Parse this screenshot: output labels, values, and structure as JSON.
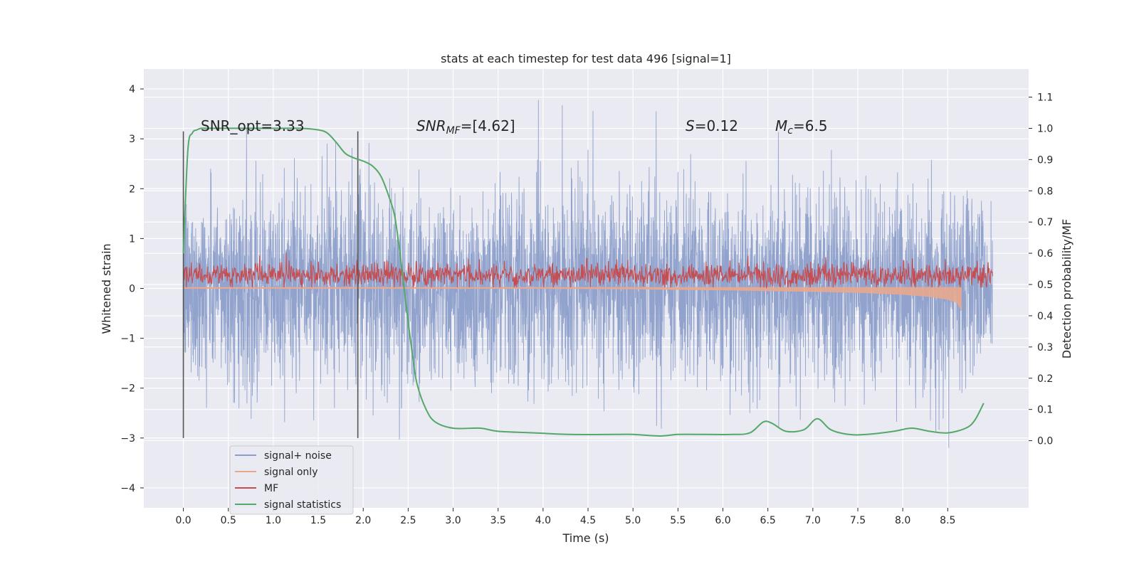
{
  "chart_data": {
    "type": "line",
    "title": "stats at each timestep for test data 496 [signal=1]",
    "xlabel": "Time (s)",
    "ylabel": "Whitened strain",
    "y2label": "Detection probability/MF",
    "xlim": [
      -0.44,
      9.4
    ],
    "ylim": [
      -4.4,
      4.4
    ],
    "y2lim": [
      -0.215,
      1.19
    ],
    "x_ticks": [
      "0.0",
      "0.5",
      "1.0",
      "1.5",
      "2.0",
      "2.5",
      "3.0",
      "3.5",
      "4.0",
      "4.5",
      "5.0",
      "5.5",
      "6.0",
      "6.5",
      "7.0",
      "7.5",
      "8.0",
      "8.5"
    ],
    "x_tick_values": [
      0.0,
      0.5,
      1.0,
      1.5,
      2.0,
      2.5,
      3.0,
      3.5,
      4.0,
      4.5,
      5.0,
      5.5,
      6.0,
      6.5,
      7.0,
      7.5,
      8.0,
      8.5
    ],
    "y_ticks": [
      "4",
      "3",
      "2",
      "1",
      "0",
      "−1",
      "−2",
      "−3",
      "−4"
    ],
    "y_tick_values": [
      4,
      3,
      2,
      1,
      0,
      -1,
      -2,
      -3,
      -4
    ],
    "y2_ticks": [
      "1.1",
      "1.0",
      "0.9",
      "0.8",
      "0.7",
      "0.6",
      "0.5",
      "0.4",
      "0.3",
      "0.2",
      "0.1",
      "0.0"
    ],
    "y2_tick_values": [
      1.1,
      1.0,
      0.9,
      0.8,
      0.7,
      0.6,
      0.5,
      0.4,
      0.3,
      0.2,
      0.1,
      0.0
    ],
    "grid": true,
    "legend_position": "lower-left",
    "annotations": {
      "snr_opt": "SNR_opt=3.33",
      "snr_mf_main": "SNR",
      "snr_mf_sub": "MF",
      "snr_mf_value": "=[4.62]",
      "s_main": "S",
      "s_value": "=0.12",
      "mc_main": "M",
      "mc_sub": "c",
      "mc_value": "=6.5"
    },
    "window_markers_x": [
      0.0,
      1.94
    ],
    "window_markers_ylim": [
      -3.0,
      3.15
    ],
    "series": [
      {
        "name": "signal+ noise",
        "color": "#8c9fca",
        "x_range": [
          0.0,
          9.0
        ],
        "mean": 0.05,
        "typical_range": [
          -2.5,
          2.6
        ],
        "extremes": [
          -3.85,
          4.02
        ],
        "style": "dense noise"
      },
      {
        "name": "signal only",
        "color": "#e8a88e",
        "x": [
          0.0,
          2.0,
          4.0,
          5.0,
          6.0,
          7.0,
          7.5,
          8.0,
          8.3,
          8.5,
          8.6,
          8.65
        ],
        "values": [
          0.0,
          0.0,
          0.0,
          -0.01,
          -0.03,
          -0.06,
          -0.08,
          -0.12,
          -0.16,
          -0.22,
          -0.28,
          -0.42
        ]
      },
      {
        "name": "MF",
        "color": "#c44e52",
        "x_range": [
          0.0,
          9.0
        ],
        "mean": 0.27,
        "typical_range": [
          0.08,
          0.58
        ],
        "extremes": [
          0.02,
          1.0
        ],
        "style": "dense noise"
      },
      {
        "name": "signal statistics",
        "color": "#55a868",
        "axis": "right",
        "x": [
          0.0,
          0.05,
          0.1,
          0.15,
          0.2,
          0.3,
          0.5,
          1.0,
          1.3,
          1.5,
          1.6,
          1.7,
          1.8,
          1.9,
          2.0,
          2.1,
          2.2,
          2.3,
          2.35,
          2.4,
          2.45,
          2.5,
          2.55,
          2.6,
          2.7,
          2.8,
          3.0,
          3.3,
          3.5,
          3.9,
          4.3,
          4.8,
          5.0,
          5.3,
          5.5,
          5.8,
          6.1,
          6.3,
          6.45,
          6.55,
          6.7,
          6.9,
          7.05,
          7.2,
          7.4,
          7.6,
          7.9,
          8.1,
          8.3,
          8.5,
          8.7,
          8.8,
          8.9
        ],
        "values": [
          0.6,
          0.93,
          0.985,
          0.995,
          1.0,
          1.0,
          1.0,
          1.0,
          1.0,
          0.995,
          0.985,
          0.955,
          0.92,
          0.905,
          0.895,
          0.88,
          0.845,
          0.77,
          0.72,
          0.62,
          0.5,
          0.38,
          0.27,
          0.18,
          0.1,
          0.06,
          0.04,
          0.04,
          0.03,
          0.025,
          0.02,
          0.02,
          0.02,
          0.015,
          0.02,
          0.02,
          0.02,
          0.025,
          0.06,
          0.055,
          0.03,
          0.035,
          0.07,
          0.035,
          0.02,
          0.02,
          0.03,
          0.04,
          0.03,
          0.025,
          0.04,
          0.065,
          0.12
        ]
      }
    ]
  }
}
